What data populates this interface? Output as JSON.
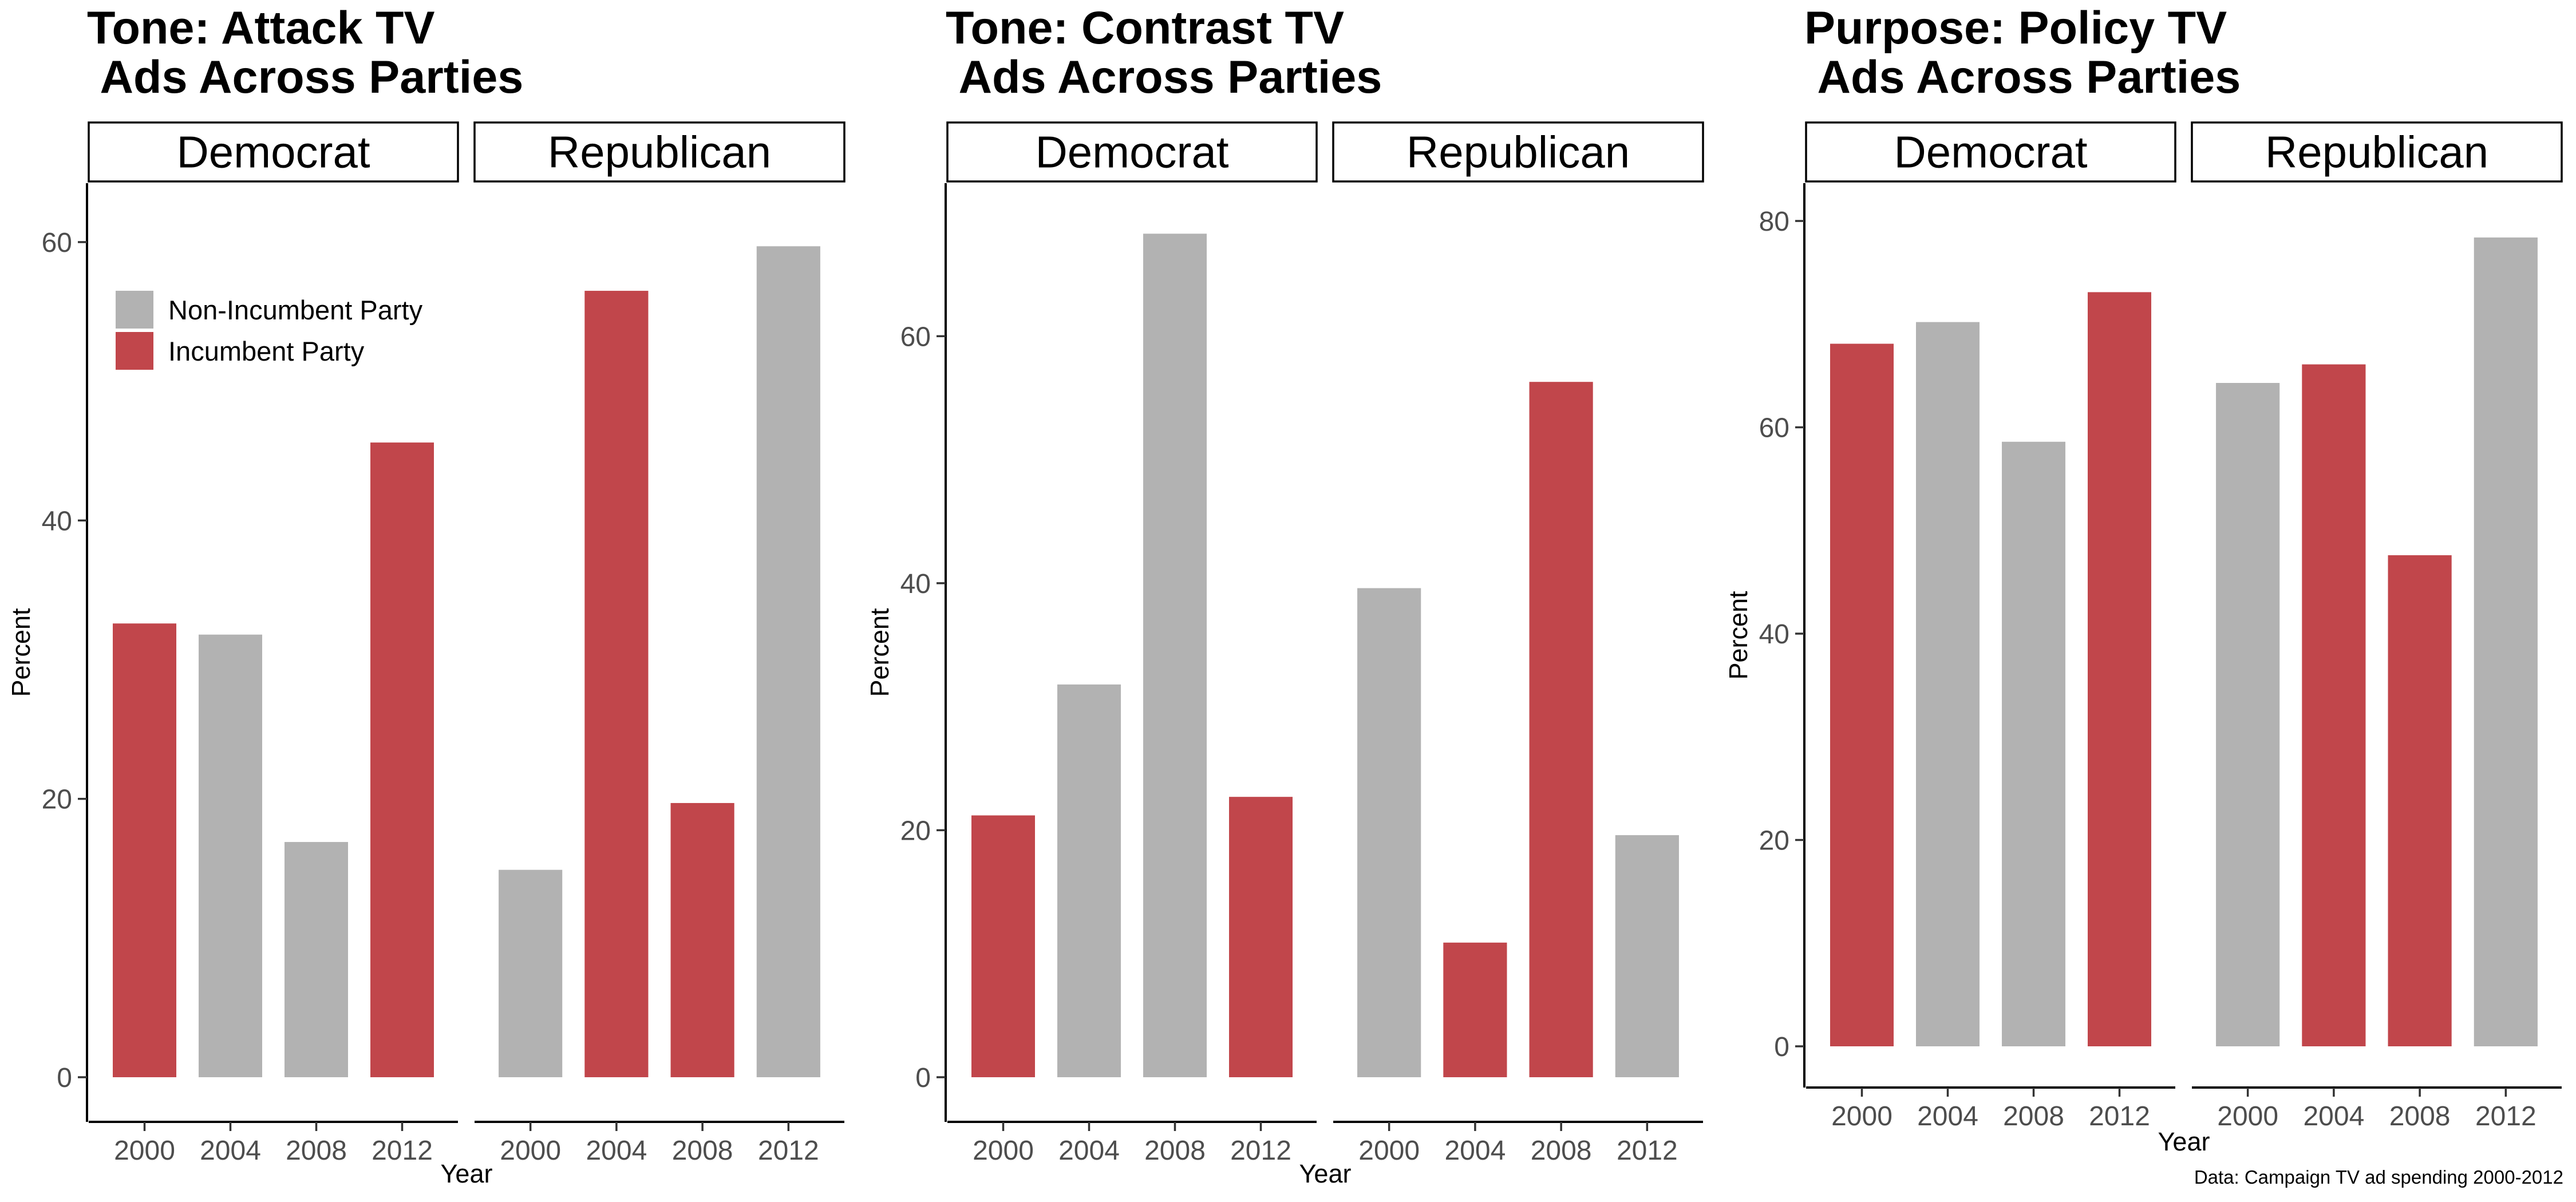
{
  "colors": {
    "incumbent": "#c1464b",
    "non_incumbent": "#b2b2b2"
  },
  "legend": {
    "items": [
      {
        "label": "Non-Incumbent Party",
        "key": "non_incumbent"
      },
      {
        "label": "Incumbent Party",
        "key": "incumbent"
      }
    ]
  },
  "caption": "Data: Campaign TV ad spending 2000-2012",
  "chart_data": [
    {
      "type": "bar",
      "title": "Tone: Attack TV\n Ads Across Parties",
      "xlabel": "Year",
      "ylabel": "Percent",
      "ylim": [
        0,
        63
      ],
      "yticks": [
        0,
        20,
        40,
        60
      ],
      "categories": [
        "2000",
        "2004",
        "2008",
        "2012"
      ],
      "legend_position": "top-left",
      "facets": [
        {
          "name": "Democrat",
          "values": [
            32.6,
            31.8,
            16.9,
            45.6
          ],
          "incumbent": [
            true,
            false,
            false,
            true
          ]
        },
        {
          "name": "Republican",
          "values": [
            14.9,
            56.5,
            19.7,
            59.7
          ],
          "incumbent": [
            false,
            true,
            true,
            false
          ]
        }
      ]
    },
    {
      "type": "bar",
      "title": "Tone: Contrast TV\n Ads Across Parties",
      "xlabel": "Year",
      "ylabel": "Percent",
      "ylim": [
        0,
        71
      ],
      "yticks": [
        0,
        20,
        40,
        60
      ],
      "categories": [
        "2000",
        "2004",
        "2008",
        "2012"
      ],
      "facets": [
        {
          "name": "Democrat",
          "values": [
            21.2,
            31.8,
            68.3,
            22.7
          ],
          "incumbent": [
            true,
            false,
            false,
            true
          ]
        },
        {
          "name": "Republican",
          "values": [
            39.6,
            10.9,
            56.3,
            19.6
          ],
          "incumbent": [
            false,
            true,
            true,
            false
          ]
        }
      ]
    },
    {
      "type": "bar",
      "title": "Purpose: Policy TV\n Ads Across Parties",
      "xlabel": "Year",
      "ylabel": "Percent",
      "ylim": [
        0,
        82
      ],
      "yticks": [
        0,
        20,
        40,
        60,
        80
      ],
      "categories": [
        "2000",
        "2004",
        "2008",
        "2012"
      ],
      "facets": [
        {
          "name": "Democrat",
          "values": [
            68.1,
            70.2,
            58.6,
            73.1
          ],
          "incumbent": [
            true,
            false,
            false,
            true
          ]
        },
        {
          "name": "Republican",
          "values": [
            64.3,
            66.1,
            47.6,
            78.4
          ],
          "incumbent": [
            false,
            true,
            true,
            false
          ]
        }
      ]
    }
  ]
}
